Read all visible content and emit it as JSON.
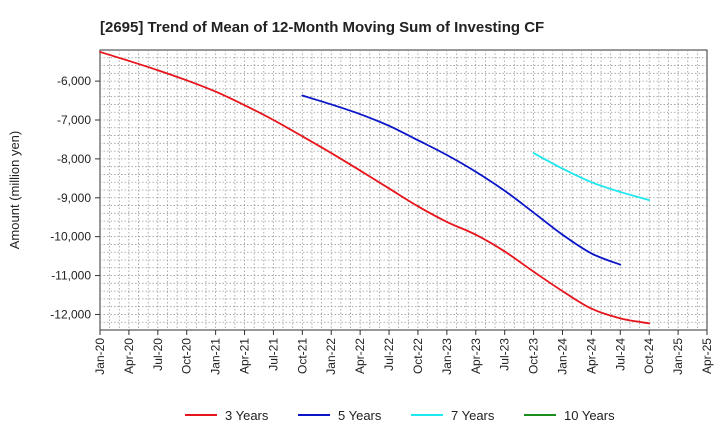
{
  "chart_data": {
    "type": "line",
    "title": "[2695]  Trend of Mean of 12-Month Moving Sum of Investing CF",
    "xlabel": "",
    "ylabel": "Amount (million yen)",
    "ylim": [
      -12400,
      -5200
    ],
    "yticks": [
      -6000,
      -7000,
      -8000,
      -9000,
      -10000,
      -11000,
      -12000
    ],
    "ytick_labels": [
      "-6,000",
      "-7,000",
      "-8,000",
      "-9,000",
      "-10,000",
      "-11,000",
      "-12,000"
    ],
    "x_months_span": 63,
    "xticks": [
      {
        "label": "Jan-20",
        "m": 0
      },
      {
        "label": "Apr-20",
        "m": 3
      },
      {
        "label": "Jul-20",
        "m": 6
      },
      {
        "label": "Oct-20",
        "m": 9
      },
      {
        "label": "Jan-21",
        "m": 12
      },
      {
        "label": "Apr-21",
        "m": 15
      },
      {
        "label": "Jul-21",
        "m": 18
      },
      {
        "label": "Oct-21",
        "m": 21
      },
      {
        "label": "Jan-22",
        "m": 24
      },
      {
        "label": "Apr-22",
        "m": 27
      },
      {
        "label": "Jul-22",
        "m": 30
      },
      {
        "label": "Oct-22",
        "m": 33
      },
      {
        "label": "Jan-23",
        "m": 36
      },
      {
        "label": "Apr-23",
        "m": 39
      },
      {
        "label": "Jul-23",
        "m": 42
      },
      {
        "label": "Oct-23",
        "m": 45
      },
      {
        "label": "Jan-24",
        "m": 48
      },
      {
        "label": "Apr-24",
        "m": 51
      },
      {
        "label": "Jul-24",
        "m": 54
      },
      {
        "label": "Oct-24",
        "m": 57
      },
      {
        "label": "Jan-25",
        "m": 60
      },
      {
        "label": "Apr-25",
        "m": 63
      }
    ],
    "series": [
      {
        "name": "3 Years",
        "color": "#e8141c",
        "points": [
          [
            0,
            -5250
          ],
          [
            3,
            -5480
          ],
          [
            6,
            -5720
          ],
          [
            9,
            -5980
          ],
          [
            12,
            -6270
          ],
          [
            15,
            -6620
          ],
          [
            18,
            -7000
          ],
          [
            21,
            -7420
          ],
          [
            24,
            -7850
          ],
          [
            27,
            -8300
          ],
          [
            30,
            -8760
          ],
          [
            33,
            -9220
          ],
          [
            36,
            -9620
          ],
          [
            39,
            -9950
          ],
          [
            42,
            -10380
          ],
          [
            45,
            -10900
          ],
          [
            48,
            -11400
          ],
          [
            51,
            -11850
          ],
          [
            54,
            -12100
          ],
          [
            57,
            -12230
          ]
        ]
      },
      {
        "name": "5 Years",
        "color": "#0a14c8",
        "points": [
          [
            21,
            -6370
          ],
          [
            24,
            -6600
          ],
          [
            27,
            -6850
          ],
          [
            30,
            -7150
          ],
          [
            33,
            -7520
          ],
          [
            36,
            -7900
          ],
          [
            39,
            -8330
          ],
          [
            42,
            -8820
          ],
          [
            45,
            -9380
          ],
          [
            48,
            -9950
          ],
          [
            51,
            -10430
          ],
          [
            54,
            -10720
          ]
        ]
      },
      {
        "name": "7 Years",
        "color": "#1ee8f0",
        "points": [
          [
            45,
            -7850
          ],
          [
            48,
            -8250
          ],
          [
            51,
            -8600
          ],
          [
            54,
            -8850
          ],
          [
            57,
            -9060
          ]
        ]
      },
      {
        "name": "10 Years",
        "color": "#1a8c1a",
        "points": []
      }
    ],
    "legend_position": "bottom",
    "grid": true
  }
}
